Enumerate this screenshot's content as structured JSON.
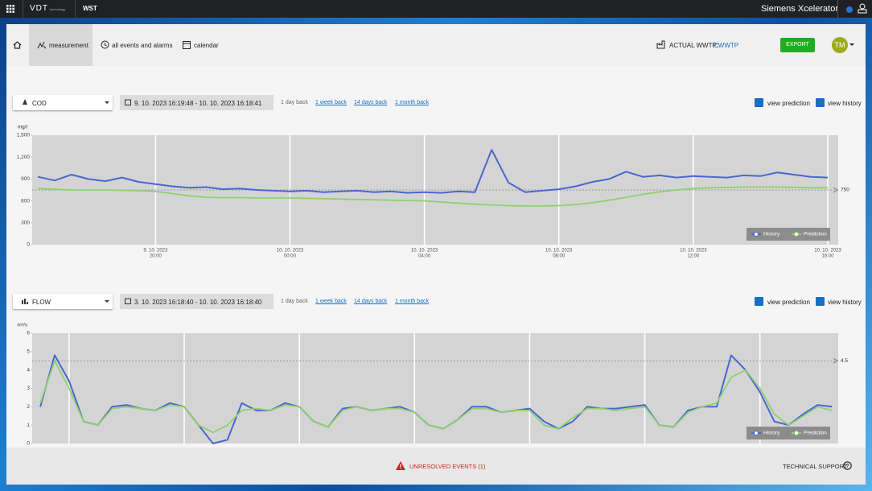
{
  "topbar": {
    "logo": "VDT",
    "logo_sub": "technology",
    "app": "WST",
    "brand": "Siemens Xcelerator"
  },
  "nav": {
    "items": [
      "measurement",
      "all events and alarms",
      "calendar"
    ],
    "wwtp_label": "ACTUAL WWTP:",
    "wwtp": "CWWTP",
    "export": "EXPORT",
    "avatar": "TM"
  },
  "panels": [
    {
      "parameter": "COD",
      "range": "9. 10. 2023 16:19:48 - 10. 10. 2023 16:18:41",
      "links": [
        "1 day back",
        "1 week back",
        "14 days back",
        "1 month back"
      ],
      "checks": [
        "view prediction",
        "view history"
      ]
    },
    {
      "parameter": "FLOW",
      "range": "3. 10. 2023 16:18:40 - 10. 10. 2023 16:18:40",
      "links": [
        "1 day back",
        "1 week back",
        "14 days back",
        "1 month back"
      ],
      "checks": [
        "view prediction",
        "view history"
      ]
    }
  ],
  "chart_data": [
    {
      "type": "line",
      "y_label": "mg/l",
      "grid": "x",
      "legend": "bottom-right",
      "reference": 750,
      "xlim": [
        "2023-10-09T16:19:48",
        "2023-10-10T16:18:41"
      ],
      "xticks": [
        {
          "value": "2023-10-09T20:00",
          "label": [
            "9. 10. 2023",
            "20:00"
          ]
        },
        {
          "value": "2023-10-10T00:00",
          "label": [
            "10. 10. 2023",
            "00:00"
          ]
        },
        {
          "value": "2023-10-10T04:00",
          "label": [
            "10. 10. 2023",
            "04:00"
          ]
        },
        {
          "value": "2023-10-10T08:00",
          "label": [
            "10. 10. 2023",
            "08:00"
          ]
        },
        {
          "value": "2023-10-10T12:00",
          "label": [
            "10. 10. 2023",
            "12:00"
          ]
        },
        {
          "value": "2023-10-10T16:00",
          "label": [
            "10. 10. 2023",
            "16:00"
          ]
        }
      ],
      "ylim": [
        0,
        1500
      ],
      "yticks": [
        0,
        300,
        600,
        900,
        {
          "value": 1200,
          "label": "1,200"
        },
        {
          "value": 1500,
          "label": "1,500"
        }
      ],
      "x": [
        "2023-10-09T16:30",
        "2023-10-09T17:00",
        "2023-10-09T17:30",
        "2023-10-09T18:00",
        "2023-10-09T18:30",
        "2023-10-09T19:00",
        "2023-10-09T19:30",
        "2023-10-09T20:00",
        "2023-10-09T20:30",
        "2023-10-09T21:00",
        "2023-10-09T21:30",
        "2023-10-09T22:00",
        "2023-10-09T22:30",
        "2023-10-09T23:00",
        "2023-10-09T23:30",
        "2023-10-10T00:00",
        "2023-10-10T00:30",
        "2023-10-10T01:00",
        "2023-10-10T01:30",
        "2023-10-10T02:00",
        "2023-10-10T02:30",
        "2023-10-10T03:00",
        "2023-10-10T03:30",
        "2023-10-10T04:00",
        "2023-10-10T04:30",
        "2023-10-10T05:00",
        "2023-10-10T05:30",
        "2023-10-10T06:00",
        "2023-10-10T06:30",
        "2023-10-10T07:00",
        "2023-10-10T07:30",
        "2023-10-10T08:00",
        "2023-10-10T08:30",
        "2023-10-10T09:00",
        "2023-10-10T09:30",
        "2023-10-10T10:00",
        "2023-10-10T10:30",
        "2023-10-10T11:00",
        "2023-10-10T11:30",
        "2023-10-10T12:00",
        "2023-10-10T12:30",
        "2023-10-10T13:00",
        "2023-10-10T13:30",
        "2023-10-10T14:00",
        "2023-10-10T14:30",
        "2023-10-10T15:00",
        "2023-10-10T15:30",
        "2023-10-10T16:00"
      ],
      "series": [
        {
          "name": "History",
          "color": "#4a67cf",
          "values": [
            930,
            880,
            960,
            900,
            870,
            920,
            860,
            830,
            800,
            780,
            790,
            760,
            770,
            750,
            740,
            730,
            740,
            720,
            730,
            740,
            720,
            730,
            710,
            720,
            710,
            730,
            720,
            1300,
            850,
            720,
            740,
            760,
            800,
            860,
            900,
            1000,
            930,
            950,
            920,
            940,
            930,
            920,
            950,
            940,
            990,
            960,
            930,
            920
          ]
        },
        {
          "name": "Prediction",
          "color": "#8fd16e",
          "values": [
            770,
            760,
            750,
            750,
            750,
            745,
            740,
            730,
            700,
            670,
            650,
            645,
            645,
            640,
            640,
            640,
            635,
            630,
            625,
            620,
            615,
            610,
            605,
            600,
            585,
            570,
            555,
            545,
            535,
            530,
            530,
            535,
            550,
            575,
            610,
            650,
            690,
            725,
            750,
            770,
            780,
            785,
            790,
            790,
            790,
            785,
            780,
            780
          ]
        }
      ]
    },
    {
      "type": "line",
      "y_label": "m³/s",
      "grid": "x",
      "legend": "bottom-right",
      "reference": 4.5,
      "xlim": [
        "2023-10-03T16:18:40",
        "2023-10-10T16:18:40"
      ],
      "xticks": [
        "2023-10-04T00:00",
        "2023-10-05T00:00",
        "2023-10-06T00:00",
        "2023-10-07T00:00",
        "2023-10-08T00:00",
        "2023-10-09T00:00",
        "2023-10-10T00:00"
      ],
      "ylim": [
        0,
        6
      ],
      "yticks": [
        0,
        1,
        2,
        3,
        4,
        5,
        6
      ],
      "x": [
        "2023-10-03T18:00",
        "2023-10-03T21:00",
        "2023-10-04T00:00",
        "2023-10-04T03:00",
        "2023-10-04T06:00",
        "2023-10-04T09:00",
        "2023-10-04T12:00",
        "2023-10-04T15:00",
        "2023-10-04T18:00",
        "2023-10-04T21:00",
        "2023-10-05T00:00",
        "2023-10-05T03:00",
        "2023-10-05T06:00",
        "2023-10-05T09:00",
        "2023-10-05T12:00",
        "2023-10-05T15:00",
        "2023-10-05T18:00",
        "2023-10-05T21:00",
        "2023-10-06T00:00",
        "2023-10-06T03:00",
        "2023-10-06T06:00",
        "2023-10-06T09:00",
        "2023-10-06T12:00",
        "2023-10-06T15:00",
        "2023-10-06T18:00",
        "2023-10-06T21:00",
        "2023-10-07T00:00",
        "2023-10-07T03:00",
        "2023-10-07T06:00",
        "2023-10-07T09:00",
        "2023-10-07T12:00",
        "2023-10-07T15:00",
        "2023-10-07T18:00",
        "2023-10-07T21:00",
        "2023-10-08T00:00",
        "2023-10-08T03:00",
        "2023-10-08T06:00",
        "2023-10-08T09:00",
        "2023-10-08T12:00",
        "2023-10-08T15:00",
        "2023-10-08T18:00",
        "2023-10-08T21:00",
        "2023-10-09T00:00",
        "2023-10-09T03:00",
        "2023-10-09T06:00",
        "2023-10-09T09:00",
        "2023-10-09T12:00",
        "2023-10-09T15:00",
        "2023-10-09T18:00",
        "2023-10-09T21:00",
        "2023-10-10T00:00",
        "2023-10-10T03:00",
        "2023-10-10T06:00",
        "2023-10-10T09:00",
        "2023-10-10T12:00",
        "2023-10-10T15:00"
      ],
      "series": [
        {
          "name": "History",
          "color": "#4a67cf",
          "values": [
            2.0,
            4.8,
            3.4,
            1.2,
            1.0,
            2.0,
            2.1,
            1.9,
            1.8,
            2.2,
            2.0,
            1.0,
            0.0,
            0.2,
            2.2,
            1.8,
            1.8,
            2.2,
            2.0,
            1.2,
            0.9,
            1.9,
            2.0,
            1.8,
            1.9,
            2.0,
            1.7,
            1.0,
            0.8,
            1.3,
            2.0,
            2.0,
            1.7,
            1.8,
            1.9,
            1.2,
            0.8,
            1.2,
            2.0,
            1.9,
            1.9,
            2.0,
            2.1,
            1.0,
            0.9,
            1.8,
            2.0,
            2.0,
            4.8,
            4.0,
            2.8,
            1.2,
            1.0,
            1.6,
            2.1,
            2.0
          ]
        },
        {
          "name": "Prediction",
          "color": "#8fd16e",
          "values": [
            2.2,
            4.5,
            3.0,
            1.2,
            1.0,
            1.9,
            2.0,
            1.9,
            1.8,
            2.1,
            2.0,
            1.0,
            0.6,
            1.0,
            1.8,
            1.9,
            1.8,
            2.1,
            2.0,
            1.2,
            0.9,
            1.8,
            2.0,
            1.8,
            1.9,
            1.9,
            1.7,
            1.0,
            0.8,
            1.3,
            1.9,
            1.9,
            1.7,
            1.8,
            1.8,
            1.0,
            0.8,
            1.4,
            1.9,
            1.9,
            1.8,
            1.9,
            2.0,
            1.0,
            0.9,
            1.7,
            2.0,
            2.2,
            3.6,
            4.0,
            3.0,
            1.6,
            1.0,
            1.5,
            2.0,
            1.8
          ]
        }
      ]
    }
  ],
  "footer": {
    "events": "UNRESOLVED EVENTS (1)",
    "support": "TECHNICAL SUPPORT"
  }
}
